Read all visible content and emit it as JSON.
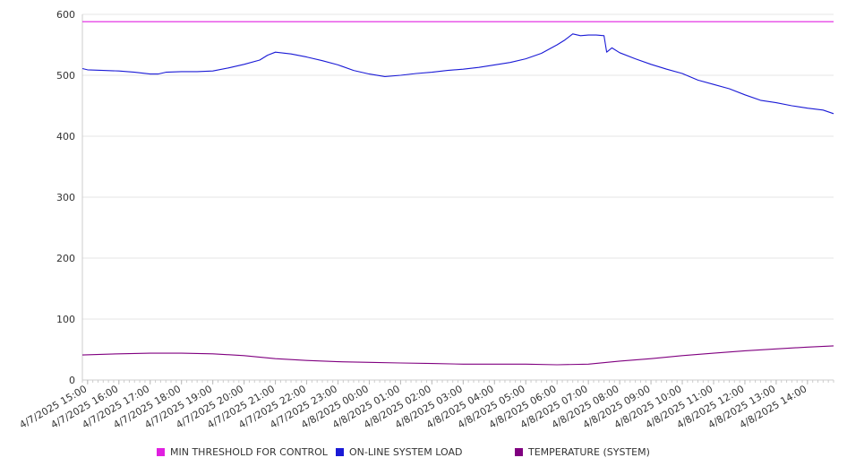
{
  "chart_data": {
    "type": "line",
    "title": "",
    "xlabel": "",
    "ylabel": "",
    "ylim": [
      0,
      600
    ],
    "y_ticks": [
      0,
      100,
      200,
      300,
      400,
      500,
      600
    ],
    "grid": true,
    "legend_position": "bottom",
    "x_range": [
      "4/7/2025 14:50",
      "4/8/2025 14:50"
    ],
    "x_tick_labels": [
      "4/7/2025 15:00",
      "4/7/2025 16:00",
      "4/7/2025 17:00",
      "4/7/2025 18:00",
      "4/7/2025 19:00",
      "4/7/2025 20:00",
      "4/7/2025 21:00",
      "4/7/2025 22:00",
      "4/7/2025 23:00",
      "4/8/2025 00:00",
      "4/8/2025 01:00",
      "4/8/2025 02:00",
      "4/8/2025 03:00",
      "4/8/2025 04:00",
      "4/8/2025 05:00",
      "4/8/2025 06:00",
      "4/8/2025 07:00",
      "4/8/2025 08:00",
      "4/8/2025 09:00",
      "4/8/2025 10:00",
      "4/8/2025 11:00",
      "4/8/2025 12:00",
      "4/8/2025 13:00",
      "4/8/2025 14:00"
    ],
    "series": [
      {
        "name": "MIN THRESHOLD FOR CONTROL",
        "color": "#e020e0",
        "x": [
          "4/7/2025 14:50",
          "4/8/2025 14:50"
        ],
        "values": [
          588,
          588
        ]
      },
      {
        "name": "ON-LINE SYSTEM LOAD",
        "color": "#1a1ad6",
        "x": [
          "4/7/2025 14:50",
          "4/7/2025 15:00",
          "4/7/2025 15:30",
          "4/7/2025 16:00",
          "4/7/2025 16:30",
          "4/7/2025 17:00",
          "4/7/2025 17:15",
          "4/7/2025 17:30",
          "4/7/2025 18:00",
          "4/7/2025 18:30",
          "4/7/2025 19:00",
          "4/7/2025 19:30",
          "4/7/2025 20:00",
          "4/7/2025 20:30",
          "4/7/2025 20:45",
          "4/7/2025 21:00",
          "4/7/2025 21:30",
          "4/7/2025 22:00",
          "4/7/2025 22:30",
          "4/7/2025 23:00",
          "4/7/2025 23:30",
          "4/8/2025 00:00",
          "4/8/2025 00:30",
          "4/8/2025 01:00",
          "4/8/2025 01:30",
          "4/8/2025 02:00",
          "4/8/2025 02:30",
          "4/8/2025 03:00",
          "4/8/2025 03:30",
          "4/8/2025 04:00",
          "4/8/2025 04:30",
          "4/8/2025 05:00",
          "4/8/2025 05:30",
          "4/8/2025 06:00",
          "4/8/2025 06:15",
          "4/8/2025 06:30",
          "4/8/2025 06:45",
          "4/8/2025 07:00",
          "4/8/2025 07:15",
          "4/8/2025 07:30",
          "4/8/2025 07:35",
          "4/8/2025 07:45",
          "4/8/2025 08:00",
          "4/8/2025 08:30",
          "4/8/2025 09:00",
          "4/8/2025 09:30",
          "4/8/2025 10:00",
          "4/8/2025 10:30",
          "4/8/2025 11:00",
          "4/8/2025 11:30",
          "4/8/2025 12:00",
          "4/8/2025 12:30",
          "4/8/2025 13:00",
          "4/8/2025 13:30",
          "4/8/2025 14:00",
          "4/8/2025 14:30",
          "4/8/2025 14:50"
        ],
        "values": [
          511,
          509,
          508,
          507,
          505,
          502,
          502,
          505,
          506,
          506,
          507,
          512,
          518,
          525,
          533,
          538,
          535,
          530,
          524,
          517,
          508,
          502,
          498,
          500,
          503,
          505,
          508,
          510,
          513,
          517,
          521,
          527,
          536,
          550,
          558,
          568,
          565,
          566,
          566,
          565,
          538,
          545,
          537,
          527,
          518,
          510,
          503,
          492,
          485,
          478,
          468,
          459,
          455,
          450,
          446,
          443,
          437
        ]
      },
      {
        "name": "TEMPERATURE (SYSTEM)",
        "color": "#800080",
        "x": [
          "4/7/2025 14:50",
          "4/7/2025 16:00",
          "4/7/2025 17:00",
          "4/7/2025 18:00",
          "4/7/2025 19:00",
          "4/7/2025 20:00",
          "4/7/2025 21:00",
          "4/7/2025 22:00",
          "4/7/2025 23:00",
          "4/8/2025 00:00",
          "4/8/2025 01:00",
          "4/8/2025 02:00",
          "4/8/2025 03:00",
          "4/8/2025 04:00",
          "4/8/2025 05:00",
          "4/8/2025 06:00",
          "4/8/2025 07:00",
          "4/8/2025 08:00",
          "4/8/2025 09:00",
          "4/8/2025 10:00",
          "4/8/2025 11:00",
          "4/8/2025 12:00",
          "4/8/2025 13:00",
          "4/8/2025 14:00",
          "4/8/2025 14:50"
        ],
        "values": [
          41,
          43,
          44,
          44,
          43,
          40,
          35,
          32,
          30,
          29,
          28,
          27,
          26,
          26,
          26,
          25,
          26,
          31,
          35,
          40,
          44,
          48,
          51,
          54,
          56
        ]
      }
    ]
  }
}
